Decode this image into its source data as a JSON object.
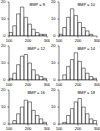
{
  "chart_data": [
    {
      "type": "histogram",
      "title": "BMP = 8",
      "bins": [
        100,
        120,
        140,
        160,
        180,
        200,
        220,
        240,
        260,
        280,
        300
      ],
      "values": [
        2,
        6,
        13,
        17,
        11,
        7,
        4,
        2,
        1,
        1
      ],
      "color": "#ffffff",
      "xlim": [
        100,
        300
      ],
      "xticks": [
        100,
        200,
        300
      ],
      "ylim": [
        0,
        20
      ],
      "yticks": [
        0,
        10,
        20
      ]
    },
    {
      "type": "histogram",
      "title": "BMP = 10",
      "bins": [
        100,
        120,
        140,
        160,
        180,
        200,
        220,
        240,
        260,
        280,
        300
      ],
      "values": [
        1,
        5,
        11,
        16,
        12,
        8,
        5,
        3,
        1,
        0
      ],
      "color": "#ffffff",
      "xlim": [
        100,
        300
      ],
      "xticks": [
        100,
        200,
        300
      ],
      "ylim": [
        0,
        20
      ],
      "yticks": [
        0,
        10,
        20
      ]
    },
    {
      "type": "histogram",
      "title": "BMP = 12",
      "bins": [
        100,
        120,
        140,
        160,
        180,
        200,
        220,
        240,
        260,
        280,
        300
      ],
      "values": [
        1,
        4,
        9,
        14,
        15,
        10,
        6,
        3,
        2,
        1
      ],
      "color": "#ffffff",
      "xlim": [
        100,
        300
      ],
      "xticks": [
        100,
        200,
        300
      ],
      "ylim": [
        0,
        20
      ],
      "yticks": [
        0,
        10,
        20
      ]
    },
    {
      "type": "histogram",
      "title": "BMP = 14",
      "bins": [
        100,
        120,
        140,
        160,
        180,
        200,
        220,
        240,
        260,
        280,
        300
      ],
      "values": [
        0,
        3,
        8,
        12,
        16,
        11,
        7,
        4,
        2,
        1
      ],
      "color": "#ffffff",
      "xlim": [
        100,
        300
      ],
      "xticks": [
        100,
        200,
        300
      ],
      "ylim": [
        0,
        20
      ],
      "yticks": [
        0,
        10,
        20
      ]
    },
    {
      "type": "histogram",
      "title": "BMP = 16",
      "bins": [
        100,
        120,
        140,
        160,
        180,
        200,
        220,
        240,
        260,
        280,
        300
      ],
      "values": [
        0,
        2,
        6,
        10,
        14,
        13,
        8,
        5,
        3,
        1
      ],
      "color": "#ffffff",
      "xlim": [
        100,
        300
      ],
      "xticks": [
        100,
        200,
        300
      ],
      "ylim": [
        0,
        20
      ],
      "yticks": [
        0,
        10,
        20
      ]
    },
    {
      "type": "histogram",
      "title": "BMP = 18",
      "bins": [
        100,
        120,
        140,
        160,
        180,
        200,
        220,
        240,
        260,
        280,
        300
      ],
      "values": [
        0,
        1,
        5,
        9,
        13,
        15,
        10,
        6,
        3,
        2
      ],
      "color": "#ffffff",
      "xlim": [
        100,
        300
      ],
      "xticks": [
        100,
        200,
        300
      ],
      "ylim": [
        0,
        20
      ],
      "yticks": [
        0,
        10,
        20
      ]
    }
  ]
}
